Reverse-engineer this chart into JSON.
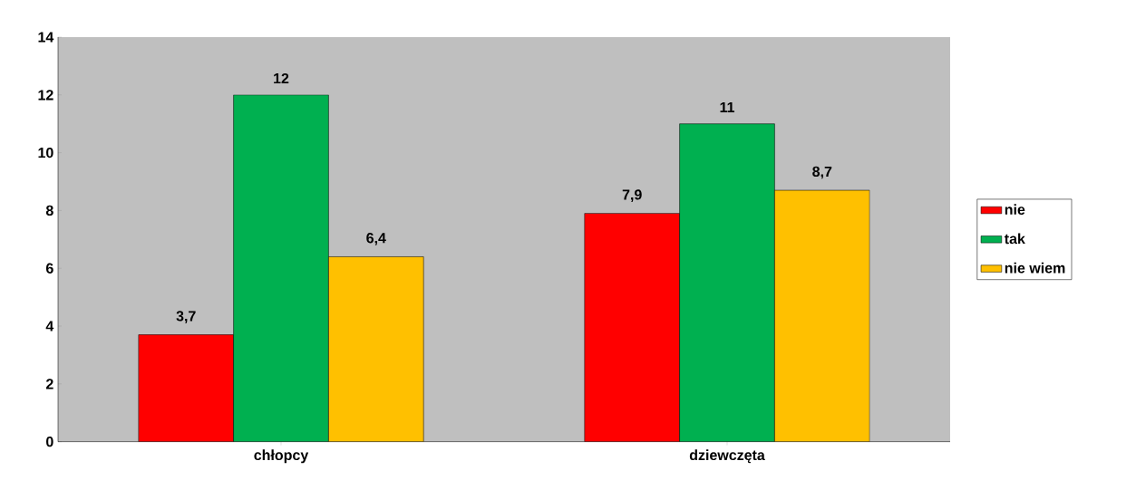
{
  "chart_data": {
    "type": "bar",
    "categories": [
      "chłopcy",
      "dziewczęta"
    ],
    "series": [
      {
        "name": "nie",
        "color": "#ff0000",
        "values": [
          3.7,
          7.9
        ],
        "value_labels": [
          "3,7",
          "7,9"
        ]
      },
      {
        "name": "tak",
        "color": "#00b050",
        "values": [
          12,
          11
        ],
        "value_labels": [
          "12",
          "11"
        ]
      },
      {
        "name": "nie wiem",
        "color": "#ffc000",
        "values": [
          6.4,
          8.7
        ],
        "value_labels": [
          "6,4",
          "8,7"
        ]
      }
    ],
    "ylim": [
      0,
      14
    ],
    "yticks": [
      0,
      2,
      4,
      6,
      8,
      10,
      12,
      14
    ],
    "legend": "right"
  }
}
